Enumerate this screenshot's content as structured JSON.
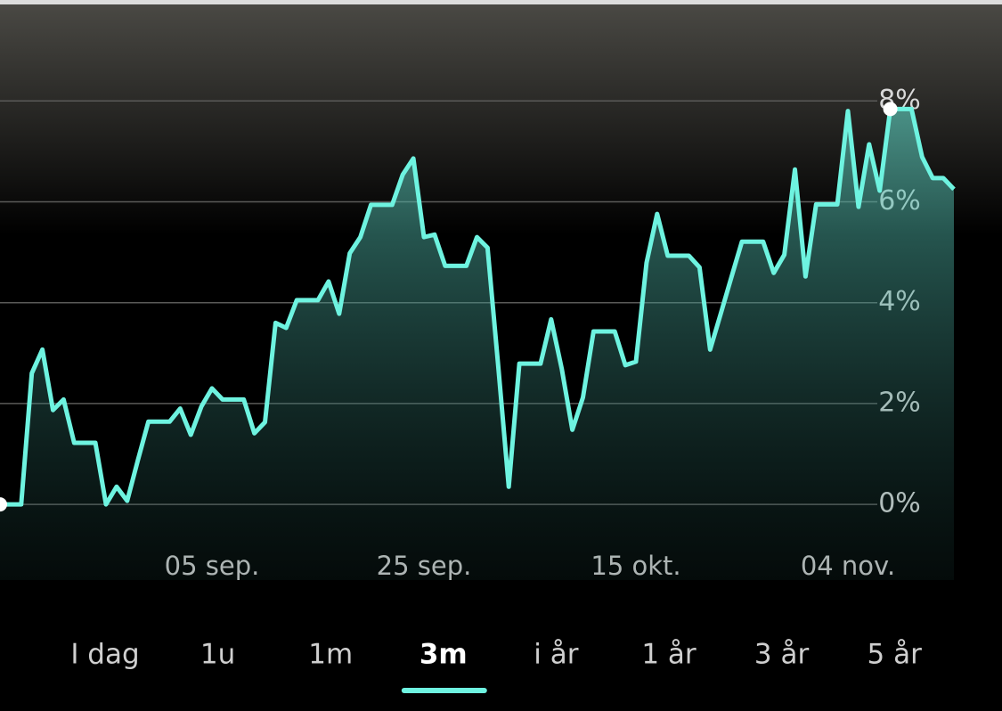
{
  "chart_data": {
    "type": "area",
    "categories": [
      null,
      null,
      null,
      null,
      null,
      null,
      null,
      null,
      null,
      null,
      null,
      null,
      null,
      null,
      null,
      null,
      null,
      null,
      null,
      null,
      "05 sep.",
      null,
      null,
      null,
      null,
      null,
      null,
      null,
      null,
      null,
      null,
      null,
      null,
      null,
      null,
      null,
      null,
      null,
      null,
      null,
      "25 sep.",
      null,
      null,
      null,
      null,
      null,
      null,
      null,
      null,
      null,
      null,
      null,
      null,
      null,
      null,
      null,
      null,
      null,
      null,
      null,
      "15 okt.",
      null,
      null,
      null,
      null,
      null,
      null,
      null,
      null,
      null,
      null,
      null,
      null,
      null,
      null,
      null,
      null,
      null,
      null,
      null,
      "04 nov.",
      null,
      null,
      null,
      null,
      null,
      null,
      null,
      null,
      null,
      null
    ],
    "values": [
      0,
      0,
      0,
      2.6,
      3.07,
      1.87,
      2.08,
      1.22,
      1.22,
      1.22,
      0,
      0.35,
      0.07,
      0.87,
      1.64,
      1.64,
      1.64,
      1.9,
      1.38,
      1.94,
      2.3,
      2.08,
      2.08,
      2.08,
      1.41,
      1.63,
      3.6,
      3.5,
      4.05,
      4.05,
      4.05,
      4.42,
      3.78,
      4.98,
      5.3,
      5.94,
      5.94,
      5.94,
      6.54,
      6.86,
      5.3,
      5.35,
      4.73,
      4.73,
      4.73,
      5.3,
      5.09,
      2.76,
      0.35,
      2.79,
      2.79,
      2.79,
      3.67,
      2.69,
      1.48,
      2.12,
      3.43,
      3.43,
      3.43,
      2.76,
      2.83,
      4.79,
      5.76,
      4.93,
      4.93,
      4.93,
      4.7,
      3.07,
      3.78,
      4.5,
      5.21,
      5.21,
      5.21,
      4.59,
      4.95,
      6.64,
      4.52,
      5.95,
      5.95,
      5.95,
      7.8,
      5.9,
      7.14,
      6.22,
      7.84,
      7.84,
      7.84,
      6.89,
      6.47,
      6.47,
      6.25
    ],
    "color": "#6ef3e0",
    "ylim": [
      -1.5,
      8.5
    ],
    "yticks": [
      {
        "value": 0,
        "label": "0%"
      },
      {
        "value": 2,
        "label": "2%"
      },
      {
        "value": 4,
        "label": "4%"
      },
      {
        "value": 6,
        "label": "6%"
      },
      {
        "value": 8,
        "label": "8%"
      }
    ],
    "grid": true
  },
  "tabs": {
    "items": [
      "I dag",
      "1u",
      "1m",
      "3m",
      "i år",
      "1 år",
      "3 år",
      "5 år"
    ],
    "selected": 3
  }
}
